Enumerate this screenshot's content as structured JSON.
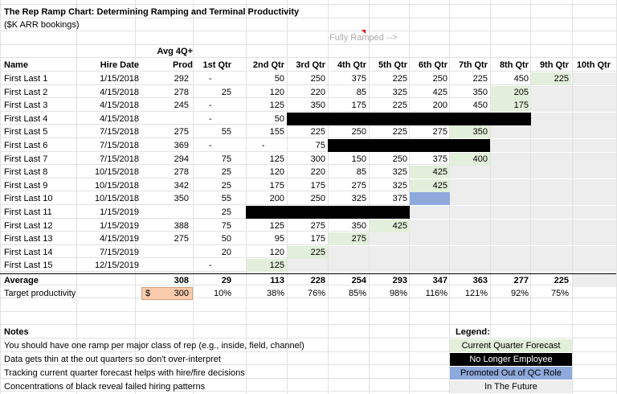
{
  "title": "The Rep Ramp Chart:  Determining Ramping and Terminal Productivity",
  "subtitle": "($K ARR bookings)",
  "fully_ramped": "Fully Ramped -->",
  "headers": {
    "name": "Name",
    "hire_date": "Hire Date",
    "avg_top": "Avg 4Q+",
    "avg_bottom": "Prod",
    "quarters": [
      "1st Qtr",
      "2nd Qtr",
      "3rd Qtr",
      "4th Qtr",
      "5th Qtr",
      "6th Qtr",
      "7th Qtr",
      "8th Qtr",
      "9th Qtr",
      "10th Qtr"
    ]
  },
  "rows": [
    {
      "name": "First Last 1",
      "hire": "1/15/2018",
      "avg": "292",
      "q": [
        "-",
        "50",
        "250",
        "375",
        "225",
        "250",
        "225",
        "450",
        "225",
        ""
      ],
      "fills": {
        "8": "g"
      },
      "future_from": 9
    },
    {
      "name": "First Last 2",
      "hire": "4/15/2018",
      "avg": "278",
      "q": [
        "25",
        "120",
        "220",
        "85",
        "325",
        "425",
        "350",
        "205",
        "",
        ""
      ],
      "fills": {
        "7": "g"
      },
      "future_from": 8
    },
    {
      "name": "First Last 3",
      "hire": "4/15/2018",
      "avg": "245",
      "q": [
        "-",
        "125",
        "350",
        "175",
        "225",
        "200",
        "450",
        "175",
        "",
        ""
      ],
      "fills": {
        "7": "g"
      },
      "future_from": 8
    },
    {
      "name": "First Last 4",
      "hire": "4/15/2018",
      "avg": "",
      "q": [
        "-",
        "50",
        "",
        "",
        "",
        "",
        "",
        "",
        "",
        ""
      ],
      "black": [
        2,
        7
      ],
      "future_from": 8
    },
    {
      "name": "First Last 5",
      "hire": "7/15/2018",
      "avg": "275",
      "q": [
        "55",
        "155",
        "225",
        "250",
        "225",
        "275",
        "350",
        "",
        "",
        ""
      ],
      "fills": {
        "6": "g"
      },
      "future_from": 7
    },
    {
      "name": "First Last 6",
      "hire": "7/15/2018",
      "avg": "369",
      "q": [
        "-",
        "-",
        "75",
        "",
        "",
        "",
        "",
        "",
        "",
        ""
      ],
      "black": [
        3,
        6
      ],
      "future_from": 7
    },
    {
      "name": "First Last 7",
      "hire": "7/15/2018",
      "avg": "294",
      "q": [
        "75",
        "125",
        "300",
        "150",
        "250",
        "375",
        "400",
        "",
        "",
        ""
      ],
      "fills": {
        "6": "g"
      },
      "future_from": 7
    },
    {
      "name": "First Last 8",
      "hire": "10/15/2018",
      "avg": "278",
      "q": [
        "25",
        "120",
        "220",
        "85",
        "325",
        "425",
        "",
        "",
        "",
        ""
      ],
      "fills": {
        "5": "g"
      },
      "future_from": 6
    },
    {
      "name": "First Last 9",
      "hire": "10/15/2018",
      "avg": "342",
      "q": [
        "25",
        "175",
        "175",
        "275",
        "325",
        "425",
        "",
        "",
        "",
        ""
      ],
      "fills": {
        "5": "g"
      },
      "future_from": 6
    },
    {
      "name": "First Last 10",
      "hire": "10/15/2018",
      "avg": "350",
      "q": [
        "55",
        "200",
        "250",
        "325",
        "375",
        "",
        "",
        "",
        "",
        ""
      ],
      "fills": {
        "5": "bl"
      },
      "future_from": 6
    },
    {
      "name": "First Last 11",
      "hire": "1/15/2019",
      "avg": "",
      "q": [
        "25",
        "",
        "",
        "",
        "",
        "",
        "",
        "",
        "",
        ""
      ],
      "black": [
        1,
        4
      ],
      "future_from": 5
    },
    {
      "name": "First Last 12",
      "hire": "1/15/2019",
      "avg": "388",
      "q": [
        "75",
        "125",
        "275",
        "350",
        "425",
        "",
        "",
        "",
        "",
        ""
      ],
      "fills": {
        "4": "g"
      },
      "future_from": 5
    },
    {
      "name": "First Last 13",
      "hire": "4/15/2019",
      "avg": "275",
      "q": [
        "50",
        "95",
        "175",
        "275",
        "",
        "",
        "",
        "",
        "",
        ""
      ],
      "fills": {
        "3": "g"
      },
      "future_from": 4
    },
    {
      "name": "First Last 14",
      "hire": "7/15/2019",
      "avg": "",
      "q": [
        "20",
        "120",
        "225",
        "",
        "",
        "",
        "",
        "",
        "",
        ""
      ],
      "fills": {
        "2": "g"
      },
      "future_from": 3
    },
    {
      "name": "First Last 15",
      "hire": "12/15/2019",
      "avg": "",
      "q": [
        "-",
        "125",
        "",
        "",
        "",
        "",
        "",
        "",
        "",
        ""
      ],
      "fills": {
        "1": "g"
      },
      "future_from": 2
    }
  ],
  "average": {
    "label": "Average",
    "avg": "308",
    "q": [
      "29",
      "113",
      "228",
      "254",
      "293",
      "347",
      "363",
      "277",
      "225",
      ""
    ]
  },
  "target": {
    "label": "Target productivity",
    "currency": "$",
    "value": "300",
    "q": [
      "10%",
      "38%",
      "76%",
      "85%",
      "98%",
      "116%",
      "121%",
      "92%",
      "75%",
      ""
    ]
  },
  "notes": {
    "heading": "Notes",
    "lines": [
      "You should have one ramp per major class of rep (e.g., inside, field, channel)",
      "Data gets thin at the out quarters so don't over-interpret",
      "Tracking current quarter forecast helps with hire/fire decisions",
      "Concentrations of black reveal failed hiring patterns"
    ]
  },
  "legend": {
    "heading": "Legend:",
    "items": [
      {
        "label": "Current Quarter Forecast",
        "color": "#e2efda",
        "text": "#000000"
      },
      {
        "label": "No Longer Employee",
        "color": "#000000",
        "text": "#ffffff"
      },
      {
        "label": "Promoted  Out of QC Role",
        "color": "#8ea9db",
        "text": "#000000"
      },
      {
        "label": "In The Future",
        "color": "#ededed",
        "text": "#000000"
      }
    ]
  }
}
